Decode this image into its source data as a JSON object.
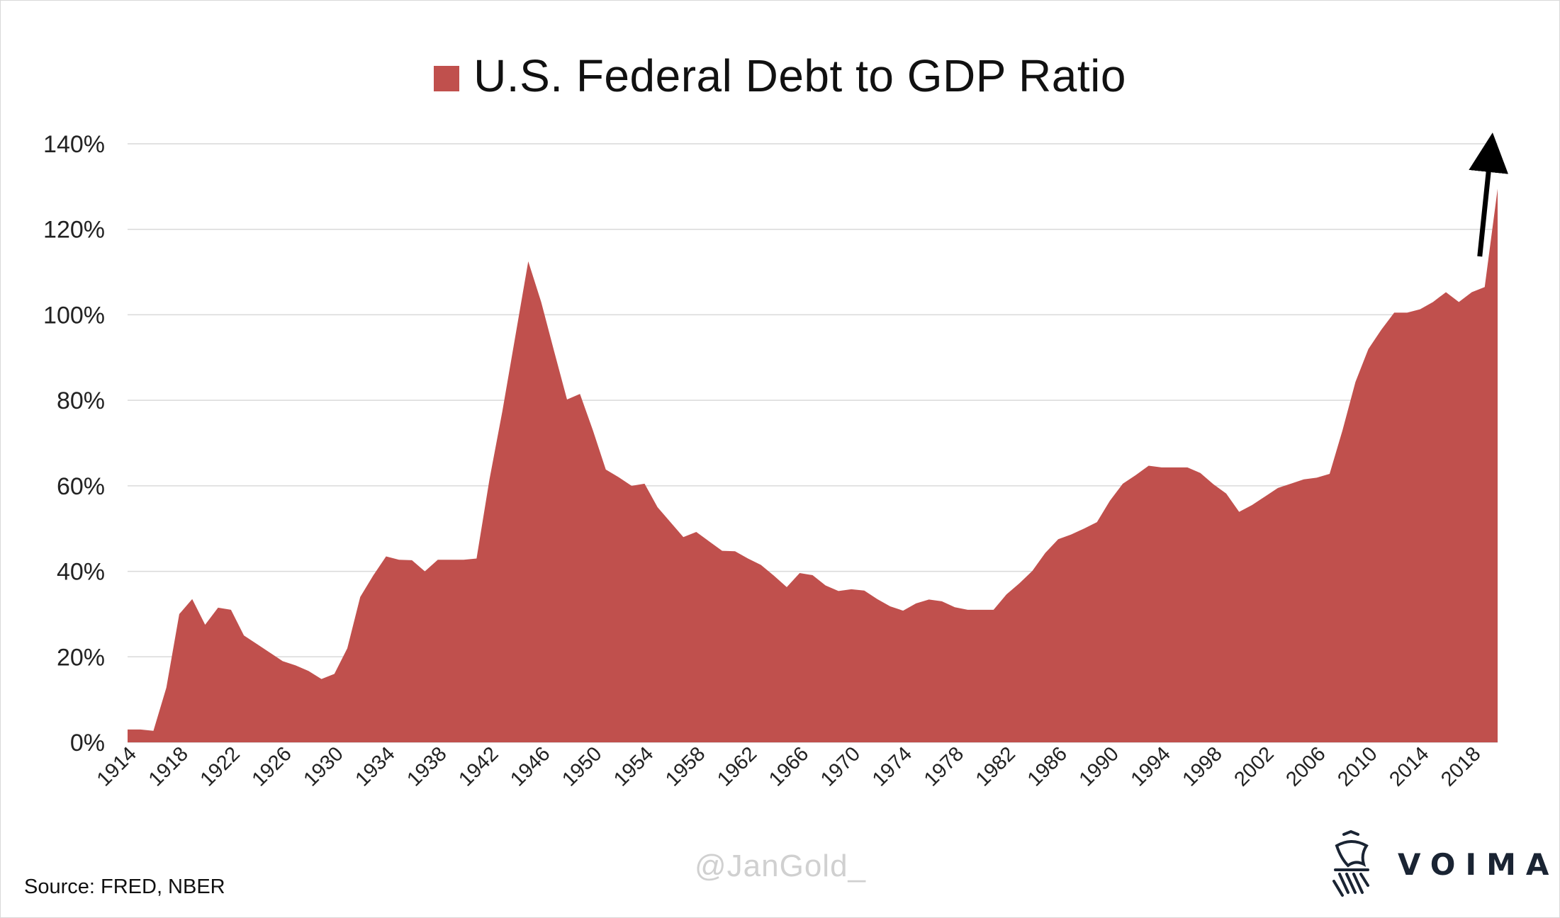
{
  "chart_data": {
    "type": "area",
    "title": "",
    "xlabel": "",
    "ylabel": "",
    "legend": {
      "position": "top-center",
      "entries": [
        "U.S. Federal Debt to GDP Ratio"
      ]
    },
    "ylim": [
      0,
      140
    ],
    "yticks": [
      "0%",
      "20%",
      "40%",
      "60%",
      "80%",
      "100%",
      "120%",
      "140%"
    ],
    "xticks": [
      "1914",
      "1918",
      "1922",
      "1926",
      "1930",
      "1934",
      "1938",
      "1942",
      "1946",
      "1950",
      "1954",
      "1958",
      "1962",
      "1966",
      "1970",
      "1974",
      "1978",
      "1982",
      "1986",
      "1990",
      "1994",
      "1998",
      "2002",
      "2006",
      "2010",
      "2014",
      "2018"
    ],
    "grid": true,
    "series": [
      {
        "name": "U.S. Federal Debt to GDP Ratio",
        "color": "#c0504d",
        "x": [
          1914,
          1915,
          1916,
          1917,
          1918,
          1919,
          1920,
          1921,
          1922,
          1923,
          1924,
          1925,
          1926,
          1927,
          1928,
          1929,
          1930,
          1931,
          1932,
          1933,
          1934,
          1935,
          1936,
          1937,
          1938,
          1939,
          1940,
          1941,
          1942,
          1943,
          1944,
          1945,
          1946,
          1947,
          1948,
          1949,
          1950,
          1951,
          1952,
          1953,
          1954,
          1955,
          1956,
          1957,
          1958,
          1959,
          1960,
          1961,
          1962,
          1963,
          1964,
          1965,
          1966,
          1967,
          1968,
          1969,
          1970,
          1971,
          1972,
          1973,
          1974,
          1975,
          1976,
          1977,
          1978,
          1979,
          1980,
          1981,
          1982,
          1983,
          1984,
          1985,
          1986,
          1987,
          1988,
          1989,
          1990,
          1991,
          1992,
          1993,
          1994,
          1995,
          1996,
          1997,
          1998,
          1999,
          2000,
          2001,
          2002,
          2003,
          2004,
          2005,
          2006,
          2007,
          2008,
          2009,
          2010,
          2011,
          2012,
          2013,
          2014,
          2015,
          2016,
          2017,
          2018,
          2019,
          2020
        ],
        "values": [
          3,
          3,
          2.7,
          12.8,
          30,
          33.5,
          27.5,
          31.5,
          31,
          25,
          23,
          21,
          19,
          18,
          16.7,
          14.8,
          16,
          22,
          34,
          39,
          43.5,
          42.7,
          42.6,
          40,
          42.7,
          42.7,
          42.7,
          43,
          61.5,
          77.5,
          95,
          112.5,
          103,
          91.5,
          80.2,
          81.5,
          73,
          63.8,
          62,
          60,
          60.5,
          55,
          51.5,
          48,
          49.2,
          47,
          44.8,
          44.7,
          43,
          41.5,
          39,
          36.3,
          39.6,
          39.1,
          36.7,
          35.4,
          35.8,
          35.5,
          33.5,
          31.8,
          30.8,
          32.5,
          33.4,
          33,
          31.6,
          31,
          31,
          31,
          34.6,
          37.2,
          40.1,
          44.3,
          47.5,
          48.6,
          50,
          51.5,
          56.5,
          60.5,
          62.5,
          64.7,
          64.3,
          64.3,
          64.3,
          63,
          60.4,
          58.2,
          53.9,
          55.5,
          57.5,
          59.5,
          60.5,
          61.5,
          61.9,
          62.8,
          73,
          84.3,
          92,
          96.5,
          100.5,
          100.5,
          101.3,
          103,
          105.3,
          103,
          105.3,
          106.5,
          129.5
        ]
      }
    ],
    "annotations": [
      {
        "type": "arrow",
        "direction": "up",
        "near_x": 2019
      }
    ]
  },
  "source": "Source: FRED, NBER",
  "watermark": "@JanGold_",
  "brand": {
    "name": "VOIMA",
    "icon": "griffin-crest-icon"
  }
}
